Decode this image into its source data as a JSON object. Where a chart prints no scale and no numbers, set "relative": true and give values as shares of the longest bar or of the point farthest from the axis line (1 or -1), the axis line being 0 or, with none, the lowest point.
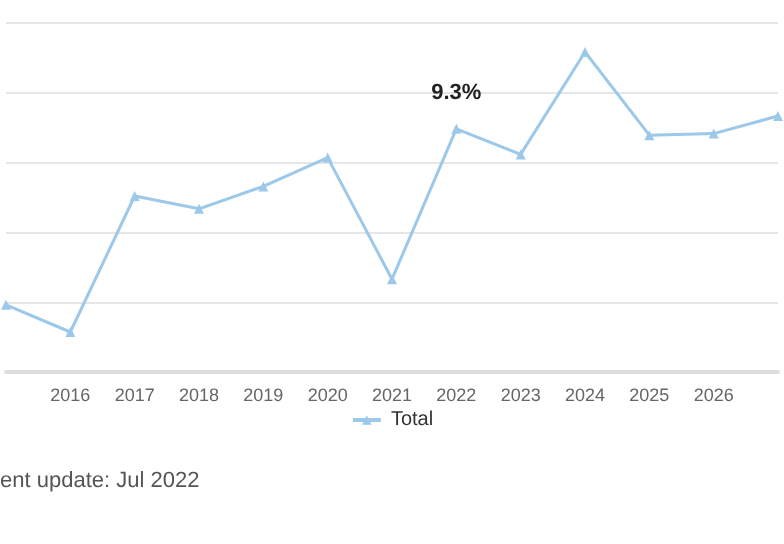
{
  "chart_data": {
    "type": "line",
    "relative": true,
    "categories": [
      null,
      "2016",
      "2017",
      "2018",
      "2019",
      "2020",
      "2021",
      "2022",
      "2023",
      "2024",
      "2025",
      "2026",
      null
    ],
    "series": [
      {
        "name": "Total",
        "color": "#9cc8ea",
        "values": [
          0.21,
          0.125,
          0.55,
          0.51,
          0.58,
          0.67,
          0.29,
          0.76,
          0.68,
          1,
          0.74,
          0.745,
          0.8
        ]
      }
    ],
    "annotations": [
      {
        "text": "9.3%",
        "x": "2022",
        "y": 0.76
      },
      "ent update: Jul 2022"
    ],
    "grid": "y",
    "legend": "bottom",
    "marker": "triangle",
    "line_style": "solid"
  }
}
